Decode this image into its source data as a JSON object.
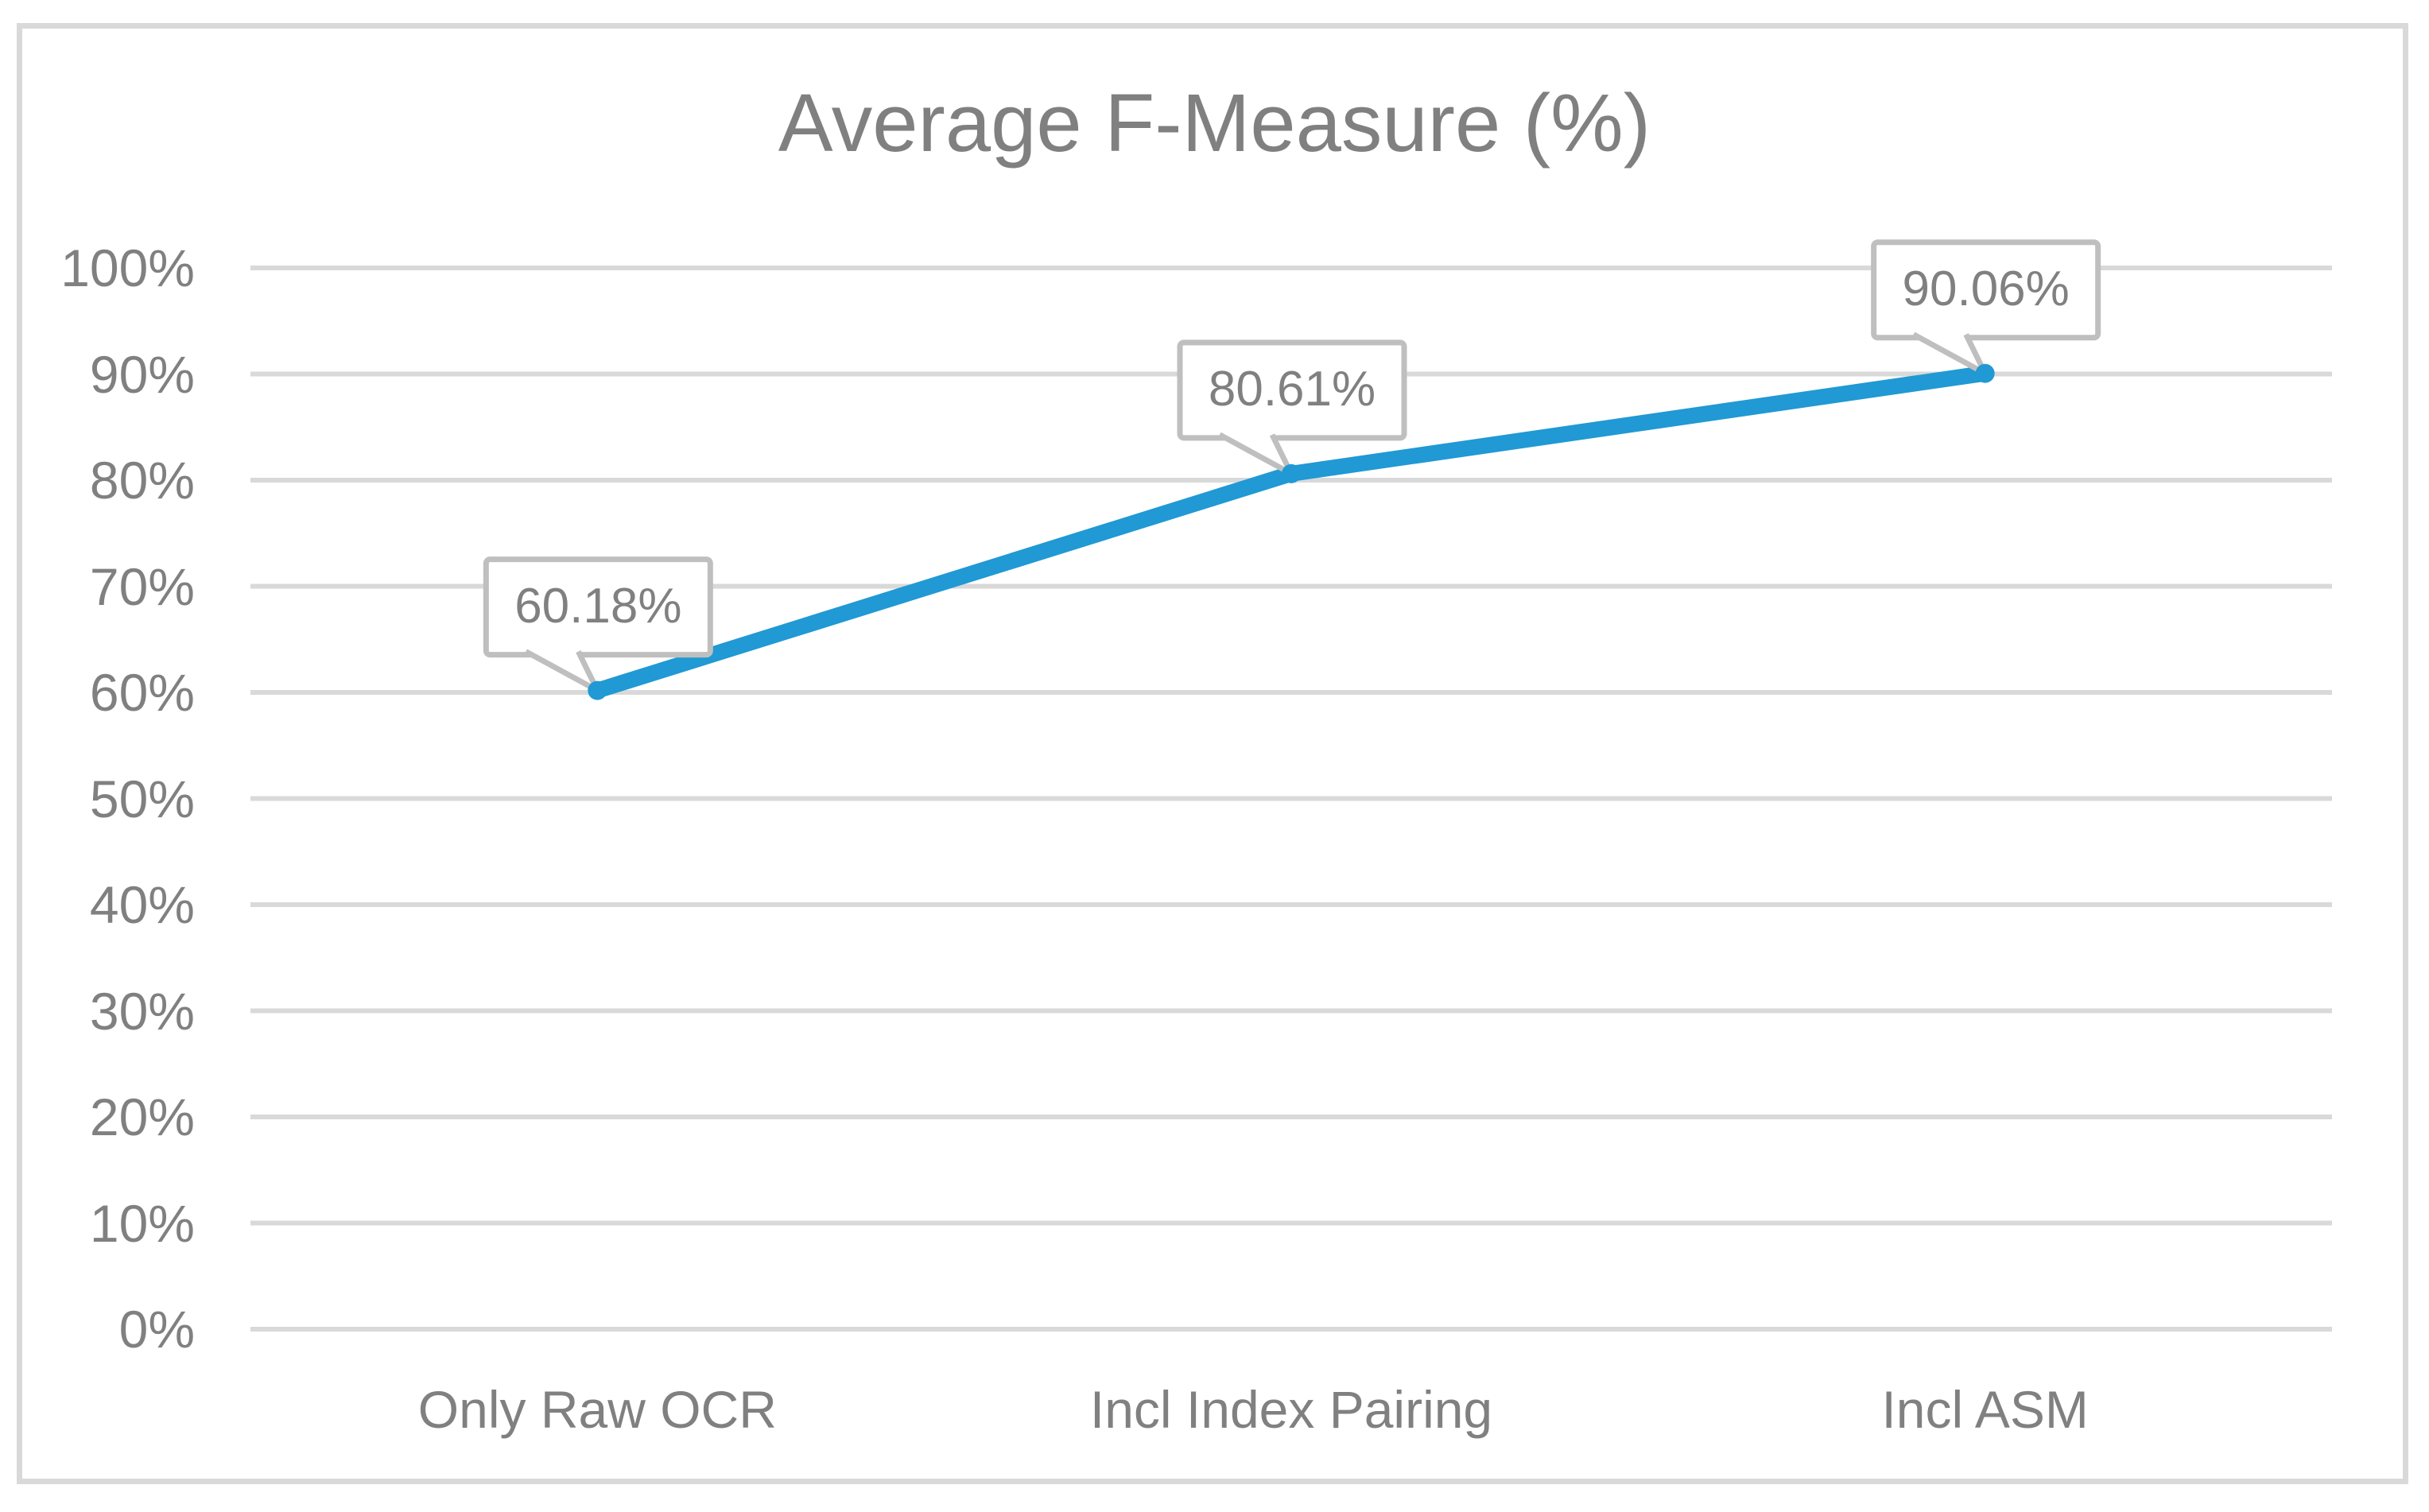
{
  "chart_data": {
    "type": "line",
    "title": "Average F-Measure (%)",
    "categories": [
      "Only Raw OCR",
      "Incl Index Pairing",
      "Incl ASM"
    ],
    "series": [
      {
        "name": "Average F-Measure",
        "values": [
          60.18,
          80.61,
          90.06
        ],
        "labels": [
          "60.18%",
          "80.61%",
          "90.06%"
        ]
      }
    ],
    "y_axis": {
      "ticks": [
        "0%",
        "10%",
        "20%",
        "30%",
        "40%",
        "50%",
        "60%",
        "70%",
        "80%",
        "90%",
        "100%"
      ],
      "min": 0,
      "max": 100,
      "step": 10
    },
    "x_axis": {
      "label": ""
    },
    "grid": true,
    "legend": "none",
    "data_label_style": "callout",
    "colors": {
      "line": "#2099D4",
      "gridline": "#D9D9D9",
      "frame_border": "#D9D9D9",
      "text": "#808080",
      "callout_border": "#BFBFBF",
      "callout_fill": "#FFFFFF",
      "background": "#FFFFFF"
    }
  }
}
